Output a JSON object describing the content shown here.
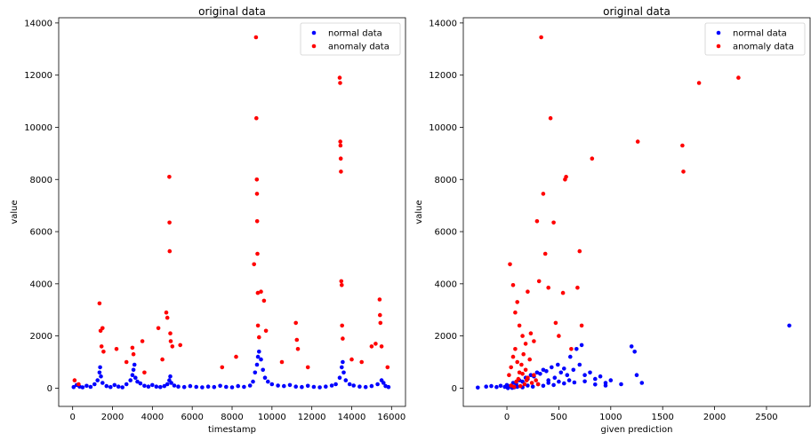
{
  "chart_data": [
    {
      "type": "scatter",
      "title": "original data",
      "xlabel": "timestamp",
      "ylabel": "value",
      "xlim": [
        -700,
        16700
      ],
      "ylim": [
        -700,
        14200
      ],
      "xticks": [
        0,
        2000,
        4000,
        6000,
        8000,
        10000,
        12000,
        14000,
        16000
      ],
      "yticks": [
        0,
        2000,
        4000,
        6000,
        8000,
        10000,
        12000,
        14000
      ],
      "grid": false,
      "legend": "top-right",
      "series": [
        {
          "name": "normal data",
          "color": "#0000ff",
          "points": [
            [
              50,
              40
            ],
            [
              200,
              120
            ],
            [
              350,
              60
            ],
            [
              500,
              30
            ],
            [
              700,
              90
            ],
            [
              900,
              50
            ],
            [
              1100,
              150
            ],
            [
              1250,
              300
            ],
            [
              1350,
              600
            ],
            [
              1380,
              800
            ],
            [
              1420,
              450
            ],
            [
              1500,
              200
            ],
            [
              1700,
              80
            ],
            [
              1900,
              40
            ],
            [
              2100,
              120
            ],
            [
              2300,
              60
            ],
            [
              2500,
              30
            ],
            [
              2700,
              150
            ],
            [
              2900,
              300
            ],
            [
              3000,
              500
            ],
            [
              3050,
              700
            ],
            [
              3100,
              900
            ],
            [
              3150,
              400
            ],
            [
              3250,
              250
            ],
            [
              3400,
              180
            ],
            [
              3600,
              90
            ],
            [
              3800,
              60
            ],
            [
              4000,
              120
            ],
            [
              4200,
              60
            ],
            [
              4400,
              40
            ],
            [
              4600,
              80
            ],
            [
              4750,
              150
            ],
            [
              4850,
              300
            ],
            [
              4900,
              450
            ],
            [
              4950,
              200
            ],
            [
              5100,
              100
            ],
            [
              5300,
              60
            ],
            [
              5600,
              40
            ],
            [
              5900,
              80
            ],
            [
              6200,
              50
            ],
            [
              6500,
              30
            ],
            [
              6800,
              60
            ],
            [
              7100,
              40
            ],
            [
              7400,
              90
            ],
            [
              7700,
              50
            ],
            [
              8000,
              30
            ],
            [
              8300,
              80
            ],
            [
              8600,
              50
            ],
            [
              8900,
              100
            ],
            [
              9050,
              250
            ],
            [
              9150,
              600
            ],
            [
              9250,
              900
            ],
            [
              9300,
              1200
            ],
            [
              9350,
              1400
            ],
            [
              9450,
              1100
            ],
            [
              9550,
              700
            ],
            [
              9650,
              400
            ],
            [
              9800,
              250
            ],
            [
              10000,
              150
            ],
            [
              10300,
              100
            ],
            [
              10600,
              80
            ],
            [
              10900,
              120
            ],
            [
              11200,
              60
            ],
            [
              11500,
              40
            ],
            [
              11800,
              90
            ],
            [
              12100,
              50
            ],
            [
              12400,
              30
            ],
            [
              12700,
              60
            ],
            [
              13000,
              100
            ],
            [
              13200,
              150
            ],
            [
              13400,
              400
            ],
            [
              13500,
              800
            ],
            [
              13550,
              1000
            ],
            [
              13600,
              600
            ],
            [
              13700,
              300
            ],
            [
              13900,
              150
            ],
            [
              14100,
              100
            ],
            [
              14400,
              60
            ],
            [
              14700,
              40
            ],
            [
              15000,
              80
            ],
            [
              15300,
              150
            ],
            [
              15500,
              300
            ],
            [
              15600,
              200
            ],
            [
              15700,
              80
            ],
            [
              15850,
              40
            ]
          ]
        },
        {
          "name": "anomaly data",
          "color": "#ff0000",
          "points": [
            [
              100,
              300
            ],
            [
              300,
              150
            ],
            [
              1350,
              3250
            ],
            [
              1400,
              2200
            ],
            [
              1450,
              1600
            ],
            [
              1500,
              2300
            ],
            [
              1550,
              1400
            ],
            [
              2200,
              1500
            ],
            [
              2700,
              1000
            ],
            [
              3000,
              1550
            ],
            [
              3050,
              1300
            ],
            [
              3500,
              1800
            ],
            [
              3600,
              600
            ],
            [
              4300,
              2300
            ],
            [
              4500,
              1100
            ],
            [
              4700,
              2900
            ],
            [
              4750,
              2700
            ],
            [
              4850,
              8100
            ],
            [
              4860,
              6350
            ],
            [
              4870,
              5250
            ],
            [
              4900,
              2100
            ],
            [
              4920,
              1800
            ],
            [
              5000,
              1600
            ],
            [
              5400,
              1650
            ],
            [
              7500,
              800
            ],
            [
              8200,
              1200
            ],
            [
              9100,
              4750
            ],
            [
              9200,
              13450
            ],
            [
              9220,
              10350
            ],
            [
              9240,
              8000
            ],
            [
              9250,
              7450
            ],
            [
              9260,
              6400
            ],
            [
              9270,
              5150
            ],
            [
              9290,
              3650
            ],
            [
              9300,
              2400
            ],
            [
              9350,
              1950
            ],
            [
              9450,
              3700
            ],
            [
              9600,
              3350
            ],
            [
              9700,
              2200
            ],
            [
              10500,
              1000
            ],
            [
              11200,
              2500
            ],
            [
              11250,
              1850
            ],
            [
              11300,
              1500
            ],
            [
              11800,
              800
            ],
            [
              13400,
              11900
            ],
            [
              13420,
              11700
            ],
            [
              13430,
              9450
            ],
            [
              13440,
              9300
            ],
            [
              13450,
              8800
            ],
            [
              13460,
              8300
            ],
            [
              13480,
              4100
            ],
            [
              13500,
              3950
            ],
            [
              13520,
              2400
            ],
            [
              13550,
              1900
            ],
            [
              14000,
              1100
            ],
            [
              14500,
              1000
            ],
            [
              15000,
              1600
            ],
            [
              15200,
              1700
            ],
            [
              15400,
              3400
            ],
            [
              15420,
              2800
            ],
            [
              15440,
              2500
            ],
            [
              15500,
              1600
            ],
            [
              15800,
              800
            ]
          ]
        }
      ]
    },
    {
      "type": "scatter",
      "title": "original data",
      "xlabel": "given prediction",
      "ylabel": "value",
      "xlim": [
        -420,
        2920
      ],
      "ylim": [
        -700,
        14200
      ],
      "xticks": [
        0,
        500,
        1000,
        1500,
        2000,
        2500
      ],
      "yticks": [
        0,
        2000,
        4000,
        6000,
        8000,
        10000,
        12000,
        14000
      ],
      "grid": false,
      "legend": "top-right",
      "series": [
        {
          "name": "normal data",
          "color": "#0000ff",
          "points": [
            [
              -280,
              20
            ],
            [
              -200,
              60
            ],
            [
              -150,
              80
            ],
            [
              -100,
              40
            ],
            [
              -60,
              90
            ],
            [
              -20,
              50
            ],
            [
              0,
              120
            ],
            [
              30,
              80
            ],
            [
              60,
              200
            ],
            [
              90,
              150
            ],
            [
              120,
              300
            ],
            [
              150,
              250
            ],
            [
              180,
              400
            ],
            [
              200,
              350
            ],
            [
              230,
              500
            ],
            [
              260,
              450
            ],
            [
              290,
              600
            ],
            [
              320,
              550
            ],
            [
              350,
              700
            ],
            [
              380,
              650
            ],
            [
              400,
              300
            ],
            [
              430,
              800
            ],
            [
              460,
              400
            ],
            [
              490,
              900
            ],
            [
              520,
              600
            ],
            [
              550,
              750
            ],
            [
              580,
              500
            ],
            [
              610,
              1200
            ],
            [
              640,
              700
            ],
            [
              670,
              1500
            ],
            [
              700,
              900
            ],
            [
              720,
              1650
            ],
            [
              750,
              500
            ],
            [
              800,
              600
            ],
            [
              850,
              350
            ],
            [
              900,
              450
            ],
            [
              950,
              200
            ],
            [
              1000,
              300
            ],
            [
              1100,
              150
            ],
            [
              1200,
              1600
            ],
            [
              1230,
              1400
            ],
            [
              1250,
              500
            ],
            [
              1300,
              200
            ],
            [
              2720,
              2400
            ],
            [
              100,
              50
            ],
            [
              200,
              100
            ],
            [
              300,
              150
            ],
            [
              400,
              200
            ],
            [
              500,
              250
            ],
            [
              600,
              300
            ],
            [
              150,
              30
            ],
            [
              250,
              60
            ],
            [
              350,
              90
            ],
            [
              450,
              120
            ],
            [
              550,
              180
            ],
            [
              650,
              220
            ],
            [
              750,
              260
            ],
            [
              850,
              140
            ],
            [
              950,
              100
            ],
            [
              50,
              10
            ],
            [
              10,
              0
            ],
            [
              70,
              30
            ]
          ]
        },
        {
          "name": "anomaly data",
          "color": "#ff0000",
          "points": [
            [
              30,
              4750
            ],
            [
              60,
              3950
            ],
            [
              80,
              2900
            ],
            [
              100,
              3300
            ],
            [
              120,
              2400
            ],
            [
              150,
              2000
            ],
            [
              180,
              1700
            ],
            [
              200,
              3700
            ],
            [
              230,
              2100
            ],
            [
              260,
              1800
            ],
            [
              290,
              6400
            ],
            [
              310,
              4100
            ],
            [
              330,
              13450
            ],
            [
              350,
              7450
            ],
            [
              370,
              5150
            ],
            [
              400,
              3850
            ],
            [
              420,
              10350
            ],
            [
              450,
              6350
            ],
            [
              470,
              2500
            ],
            [
              500,
              2000
            ],
            [
              540,
              3650
            ],
            [
              560,
              8000
            ],
            [
              570,
              8100
            ],
            [
              620,
              1500
            ],
            [
              680,
              3850
            ],
            [
              700,
              5250
            ],
            [
              720,
              2400
            ],
            [
              820,
              8800
            ],
            [
              1260,
              9450
            ],
            [
              1690,
              9300
            ],
            [
              1700,
              8300
            ],
            [
              1850,
              11700
            ],
            [
              2230,
              11900
            ],
            [
              20,
              500
            ],
            [
              40,
              800
            ],
            [
              60,
              1200
            ],
            [
              80,
              1500
            ],
            [
              100,
              1000
            ],
            [
              120,
              600
            ],
            [
              140,
              900
            ],
            [
              160,
              1300
            ],
            [
              180,
              700
            ],
            [
              200,
              400
            ],
            [
              220,
              1100
            ],
            [
              240,
              200
            ],
            [
              260,
              500
            ],
            [
              280,
              300
            ],
            [
              300,
              150
            ],
            [
              40,
              100
            ],
            [
              70,
              50
            ],
            [
              90,
              250
            ],
            [
              110,
              350
            ],
            [
              130,
              80
            ],
            [
              150,
              550
            ],
            [
              170,
              150
            ],
            [
              190,
              300
            ]
          ]
        }
      ]
    }
  ]
}
